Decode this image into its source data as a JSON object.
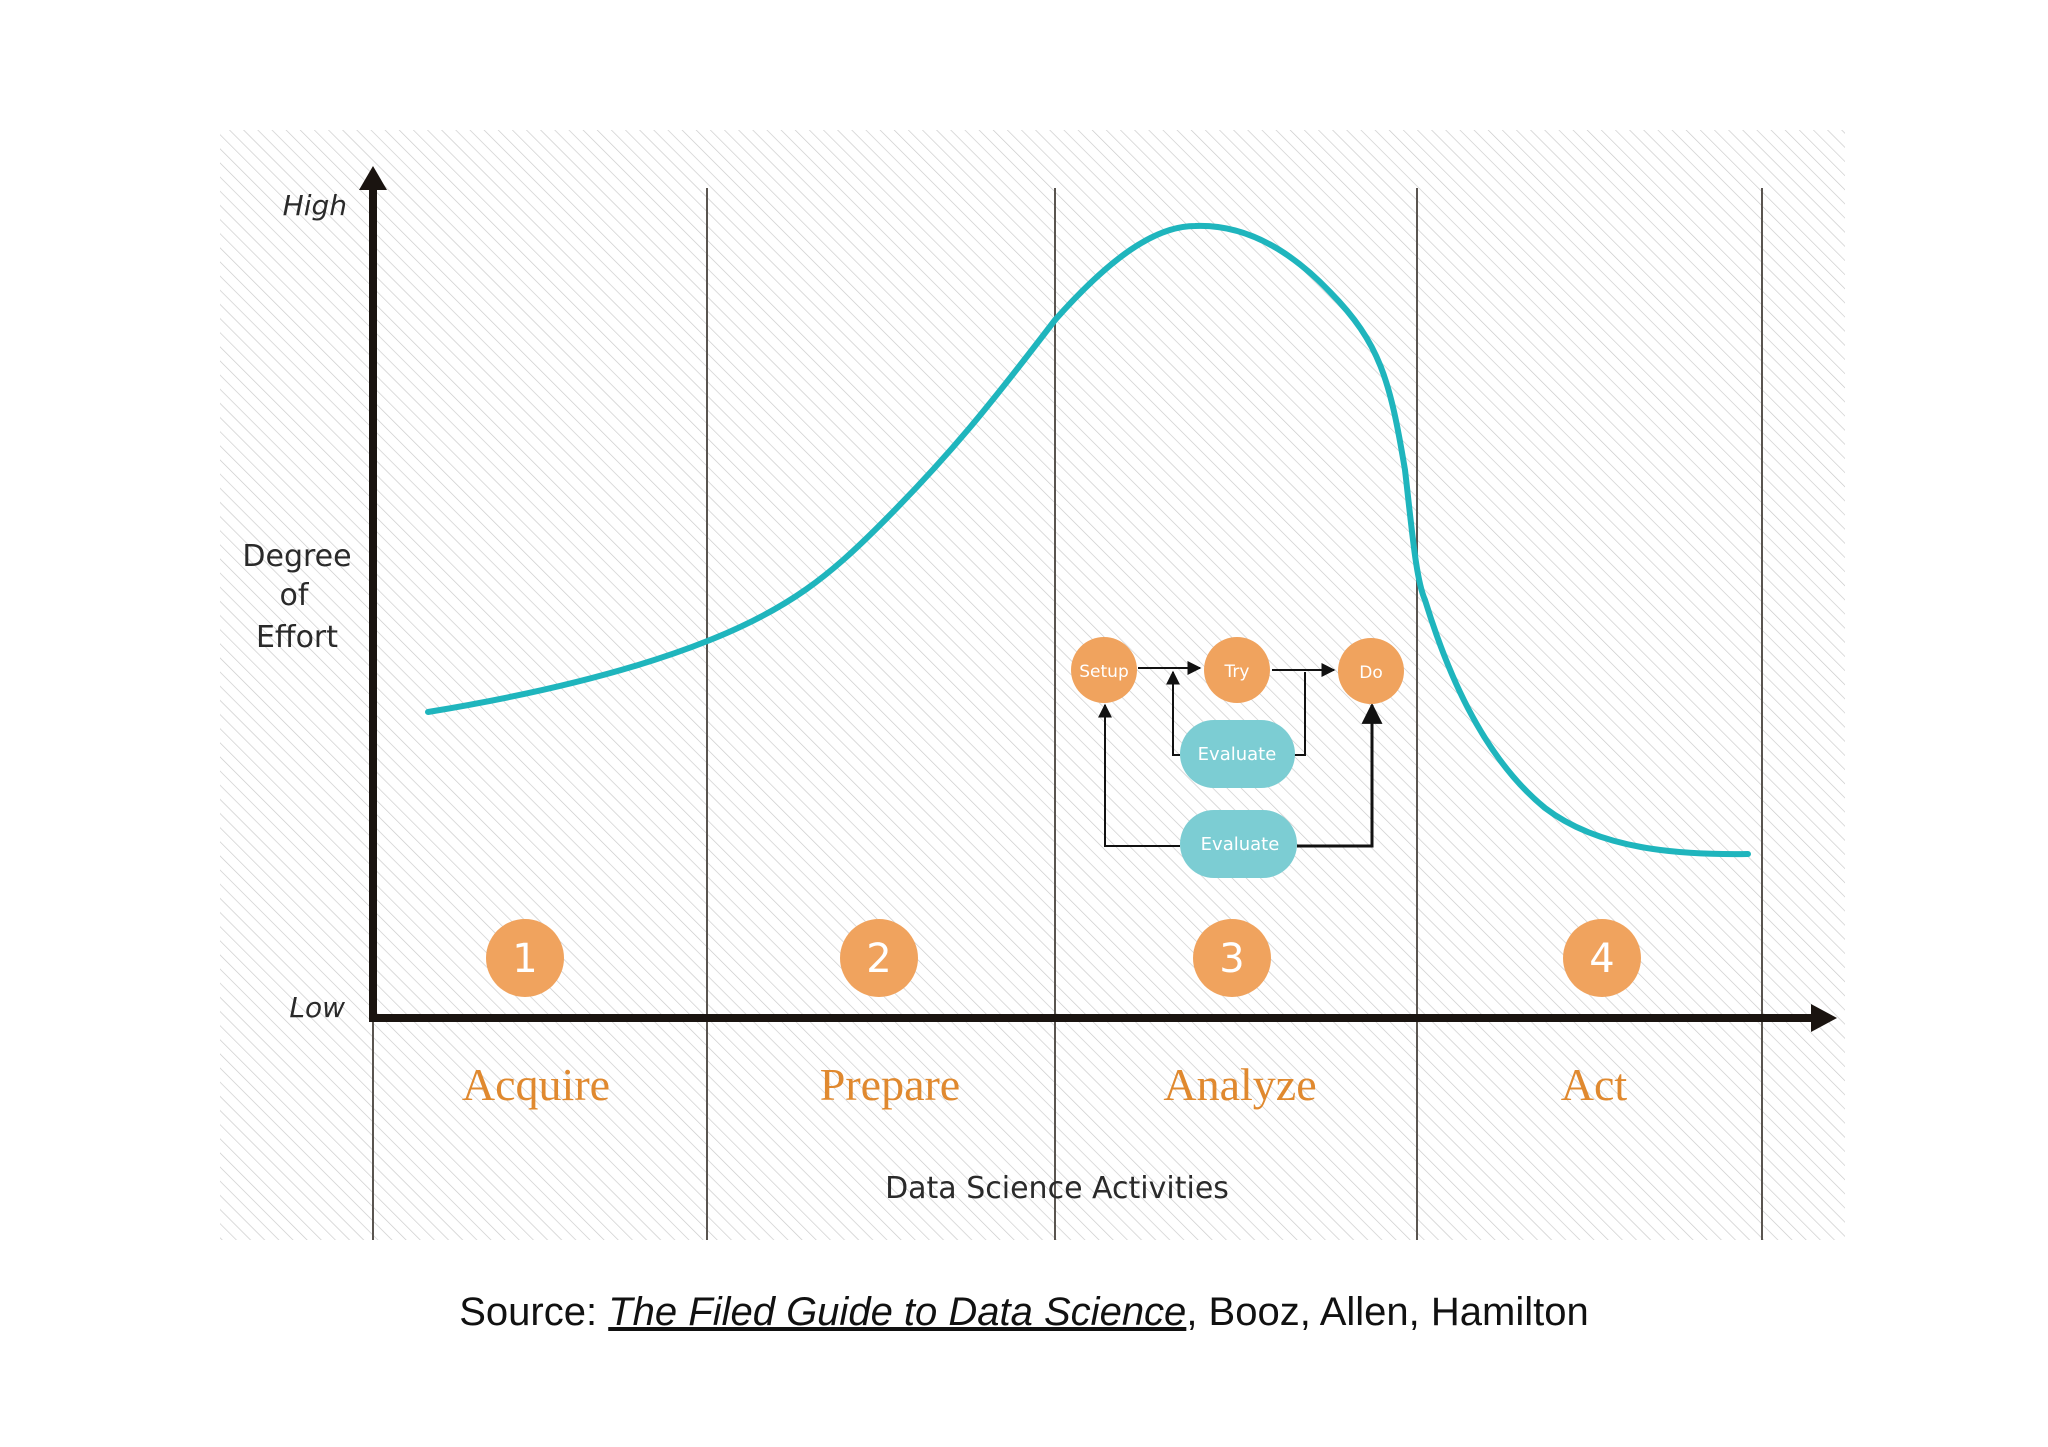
{
  "diagram": {
    "y_axis": {
      "high": "High",
      "low": "Low",
      "label_lines": [
        "Degree",
        "of",
        "Effort"
      ]
    },
    "x_axis": {
      "label": "Data Science Activities"
    },
    "stages": [
      {
        "number": "1",
        "name": "Acquire"
      },
      {
        "number": "2",
        "name": "Prepare"
      },
      {
        "number": "3",
        "name": "Analyze"
      },
      {
        "number": "4",
        "name": "Act"
      }
    ],
    "cycle": {
      "setup": "Setup",
      "try": "Try",
      "do": "Do",
      "evaluate_inner": "Evaluate",
      "evaluate_outer": "Evaluate"
    },
    "colors": {
      "curve": "#1fb5bd",
      "stage_orange": "#f0a35e",
      "stage_text": "#e0892f",
      "evaluate_teal": "#7ccdd3",
      "axis": "#1a1410",
      "divider": "#5a5550"
    }
  },
  "source": {
    "prefix": "Source: ",
    "title": "The Filed Guide to Data Science",
    "suffix": ", Booz, Allen, Hamilton"
  }
}
